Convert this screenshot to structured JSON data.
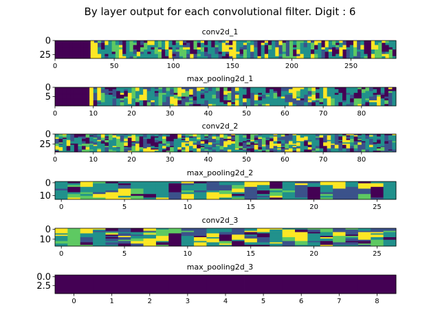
{
  "figure": {
    "title": "By layer output for each convolutional filter. Digit : 6"
  },
  "colors": {
    "viridis": [
      "#440154",
      "#3b528b",
      "#21918c",
      "#5ec962",
      "#fde725"
    ],
    "axis": "#000000",
    "background": "#ffffff"
  },
  "chart_data": [
    {
      "type": "heatmap",
      "title": "conv2d_1",
      "xlim": [
        0,
        288
      ],
      "ylim": [
        32,
        0
      ],
      "xticks": [
        "0",
        "50",
        "100",
        "150",
        "200",
        "250"
      ],
      "xtick_values": [
        0,
        50,
        100,
        150,
        200,
        250
      ],
      "yticks": [
        "0",
        "25"
      ],
      "ytick_values": [
        0,
        25
      ],
      "grid": false,
      "legend": "none",
      "seed": 1,
      "columns": 96,
      "rows": 8,
      "blocks": [
        {
          "x0": 0,
          "x1": 31,
          "value": 0
        },
        {
          "x0": 31,
          "x1": 32,
          "value": 4
        },
        {
          "x0": 32,
          "x1": 288,
          "value": "random"
        }
      ]
    },
    {
      "type": "heatmap",
      "title": "max_pooling2d_1",
      "xlim": [
        0,
        89
      ],
      "ylim": [
        10,
        0
      ],
      "xticks": [
        "0",
        "10",
        "20",
        "30",
        "40",
        "50",
        "60",
        "70",
        "80"
      ],
      "xtick_values": [
        0,
        10,
        20,
        30,
        40,
        50,
        60,
        70,
        80
      ],
      "yticks": [
        "0",
        "5"
      ],
      "ytick_values": [
        0,
        5
      ],
      "grid": false,
      "legend": "none",
      "seed": 2,
      "columns": 89,
      "rows": 10,
      "blocks": [
        {
          "x0": 0,
          "x1": 9.5,
          "value": 0
        },
        {
          "x0": 9.5,
          "x1": 10.5,
          "value": 4
        },
        {
          "x0": 10.5,
          "x1": 89,
          "value": "random"
        }
      ]
    },
    {
      "type": "heatmap",
      "title": "conv2d_2",
      "xlim": [
        0,
        89
      ],
      "ylim": [
        45,
        0
      ],
      "xticks": [
        "0",
        "10",
        "20",
        "30",
        "40",
        "50",
        "60",
        "70",
        "80"
      ],
      "xtick_values": [
        0,
        10,
        20,
        30,
        40,
        50,
        60,
        70,
        80
      ],
      "yticks": [
        "0",
        "25"
      ],
      "ytick_values": [
        0,
        25
      ],
      "grid": false,
      "legend": "none",
      "seed": 3,
      "columns": 89,
      "rows": 15,
      "blocks": [
        {
          "x0": 0,
          "x1": 89,
          "value": "random"
        }
      ]
    },
    {
      "type": "heatmap",
      "title": "max_pooling2d_2",
      "xlim": [
        -0.5,
        26.5
      ],
      "ylim": [
        13,
        -1
      ],
      "xticks": [
        "0",
        "5",
        "10",
        "15",
        "20",
        "25"
      ],
      "xtick_values": [
        0,
        5,
        10,
        15,
        20,
        25
      ],
      "yticks": [
        "0",
        "10"
      ],
      "ytick_values": [
        0,
        10
      ],
      "grid": false,
      "legend": "none",
      "seed": 4,
      "columns": 27,
      "rows": 10,
      "blocks": [
        {
          "x0": -0.5,
          "x1": 26.5,
          "value": "random"
        }
      ]
    },
    {
      "type": "heatmap",
      "title": "conv2d_3",
      "xlim": [
        -0.5,
        26.5
      ],
      "ylim": [
        17,
        -1
      ],
      "xticks": [
        "0",
        "5",
        "10",
        "15",
        "20",
        "25"
      ],
      "xtick_values": [
        0,
        5,
        10,
        15,
        20,
        25
      ],
      "yticks": [
        "0",
        "10"
      ],
      "ytick_values": [
        0,
        10
      ],
      "grid": false,
      "legend": "none",
      "seed": 5,
      "columns": 27,
      "rows": 14,
      "blocks": [
        {
          "x0": -0.5,
          "x1": 26.5,
          "value": "random"
        }
      ]
    },
    {
      "type": "heatmap",
      "title": "max_pooling2d_3",
      "xlim": [
        -0.5,
        8.5
      ],
      "ylim": [
        4.8,
        -0.5
      ],
      "xticks": [
        "0",
        "1",
        "2",
        "3",
        "4",
        "5",
        "6",
        "7",
        "8"
      ],
      "xtick_values": [
        0,
        1,
        2,
        3,
        4,
        5,
        6,
        7,
        8
      ],
      "yticks": [
        "0.0",
        "2.5"
      ],
      "ytick_values": [
        0,
        2.5
      ],
      "grid": false,
      "legend": "none",
      "seed": 6,
      "columns": 9,
      "rows": 1,
      "blocks": [
        {
          "x0": -0.5,
          "x1": 8.5,
          "value": 0
        }
      ]
    }
  ]
}
